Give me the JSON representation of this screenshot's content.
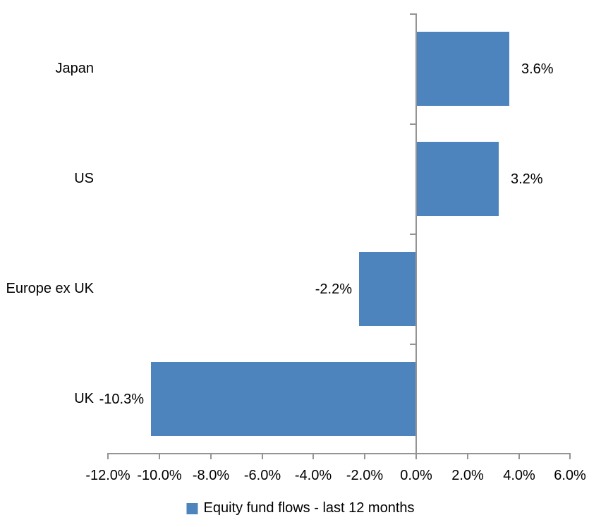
{
  "chart_data": {
    "type": "bar",
    "orientation": "horizontal",
    "title": "",
    "categories": [
      "Japan",
      "US",
      "Europe ex UK",
      "UK"
    ],
    "values": [
      3.6,
      3.2,
      -2.2,
      -10.3
    ],
    "data_labels": [
      "3.6%",
      "3.2%",
      "-2.2%",
      "-10.3%"
    ],
    "x_tick_labels": [
      "-12.0%",
      "-10.0%",
      "-8.0%",
      "-6.0%",
      "-4.0%",
      "-2.0%",
      "0.0%",
      "2.0%",
      "4.0%",
      "6.0%"
    ],
    "x_tick_values": [
      -12,
      -10,
      -8,
      -6,
      -4,
      -2,
      0,
      2,
      4,
      6
    ],
    "xlim": [
      -12,
      6
    ],
    "grid": false,
    "legend": "Equity fund flows - last 12 months",
    "legend_position": "bottom",
    "colors": {
      "bar": "#4e84bd",
      "axis": "#949494",
      "text": "#000000"
    }
  }
}
